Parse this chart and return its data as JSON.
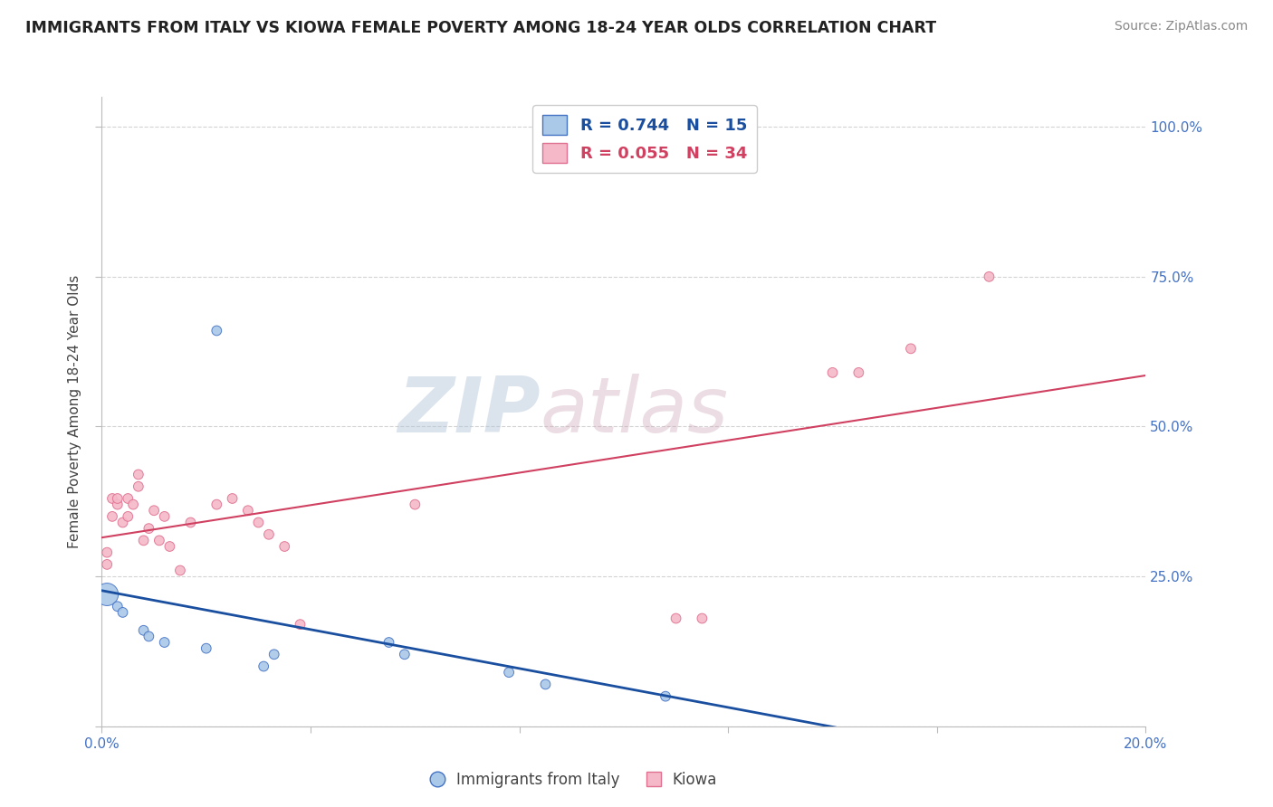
{
  "title": "IMMIGRANTS FROM ITALY VS KIOWA FEMALE POVERTY AMONG 18-24 YEAR OLDS CORRELATION CHART",
  "source": "Source: ZipAtlas.com",
  "ylabel": "Female Poverty Among 18-24 Year Olds",
  "x_min": 0.0,
  "x_max": 0.2,
  "y_min": 0.0,
  "y_max": 1.05,
  "y_ticks": [
    0.0,
    0.25,
    0.5,
    0.75,
    1.0
  ],
  "y_tick_labels": [
    "",
    "25.0%",
    "50.0%",
    "75.0%",
    "100.0%"
  ],
  "italy_x": [
    0.001,
    0.003,
    0.004,
    0.008,
    0.009,
    0.012,
    0.02,
    0.022,
    0.031,
    0.033,
    0.055,
    0.058,
    0.078,
    0.085,
    0.108
  ],
  "italy_y": [
    0.22,
    0.2,
    0.19,
    0.16,
    0.15,
    0.14,
    0.13,
    0.66,
    0.1,
    0.12,
    0.14,
    0.12,
    0.09,
    0.07,
    0.05
  ],
  "italy_size_large": 320,
  "italy_size_small": 60,
  "italy_large_idx": 0,
  "kiowa_x": [
    0.001,
    0.001,
    0.002,
    0.002,
    0.003,
    0.003,
    0.004,
    0.005,
    0.005,
    0.006,
    0.007,
    0.007,
    0.008,
    0.009,
    0.01,
    0.011,
    0.012,
    0.013,
    0.015,
    0.017,
    0.022,
    0.025,
    0.028,
    0.03,
    0.032,
    0.035,
    0.038,
    0.06,
    0.11,
    0.115,
    0.14,
    0.145,
    0.155,
    0.17
  ],
  "kiowa_y": [
    0.29,
    0.27,
    0.38,
    0.35,
    0.37,
    0.38,
    0.34,
    0.38,
    0.35,
    0.37,
    0.4,
    0.42,
    0.31,
    0.33,
    0.36,
    0.31,
    0.35,
    0.3,
    0.26,
    0.34,
    0.37,
    0.38,
    0.36,
    0.34,
    0.32,
    0.3,
    0.17,
    0.37,
    0.18,
    0.18,
    0.59,
    0.59,
    0.63,
    0.75
  ],
  "kiowa_sizes": [
    60,
    60,
    60,
    60,
    60,
    60,
    60,
    60,
    60,
    60,
    60,
    60,
    60,
    60,
    60,
    60,
    60,
    60,
    60,
    60,
    60,
    60,
    60,
    60,
    60,
    60,
    60,
    60,
    60,
    60,
    60,
    60,
    60,
    60
  ],
  "italy_color": "#aac8e8",
  "italy_edge_color": "#4472c4",
  "italy_line_color": "#1a4fa0",
  "kiowa_color": "#f4b8c8",
  "kiowa_edge_color": "#e07090",
  "kiowa_line_color": "#d04060",
  "italy_R": 0.744,
  "italy_N": 15,
  "kiowa_R": 0.055,
  "kiowa_N": 34,
  "watermark_zip": "ZIP",
  "watermark_atlas": "atlas",
  "bg_color": "#ffffff",
  "grid_color": "#c8c8c8"
}
